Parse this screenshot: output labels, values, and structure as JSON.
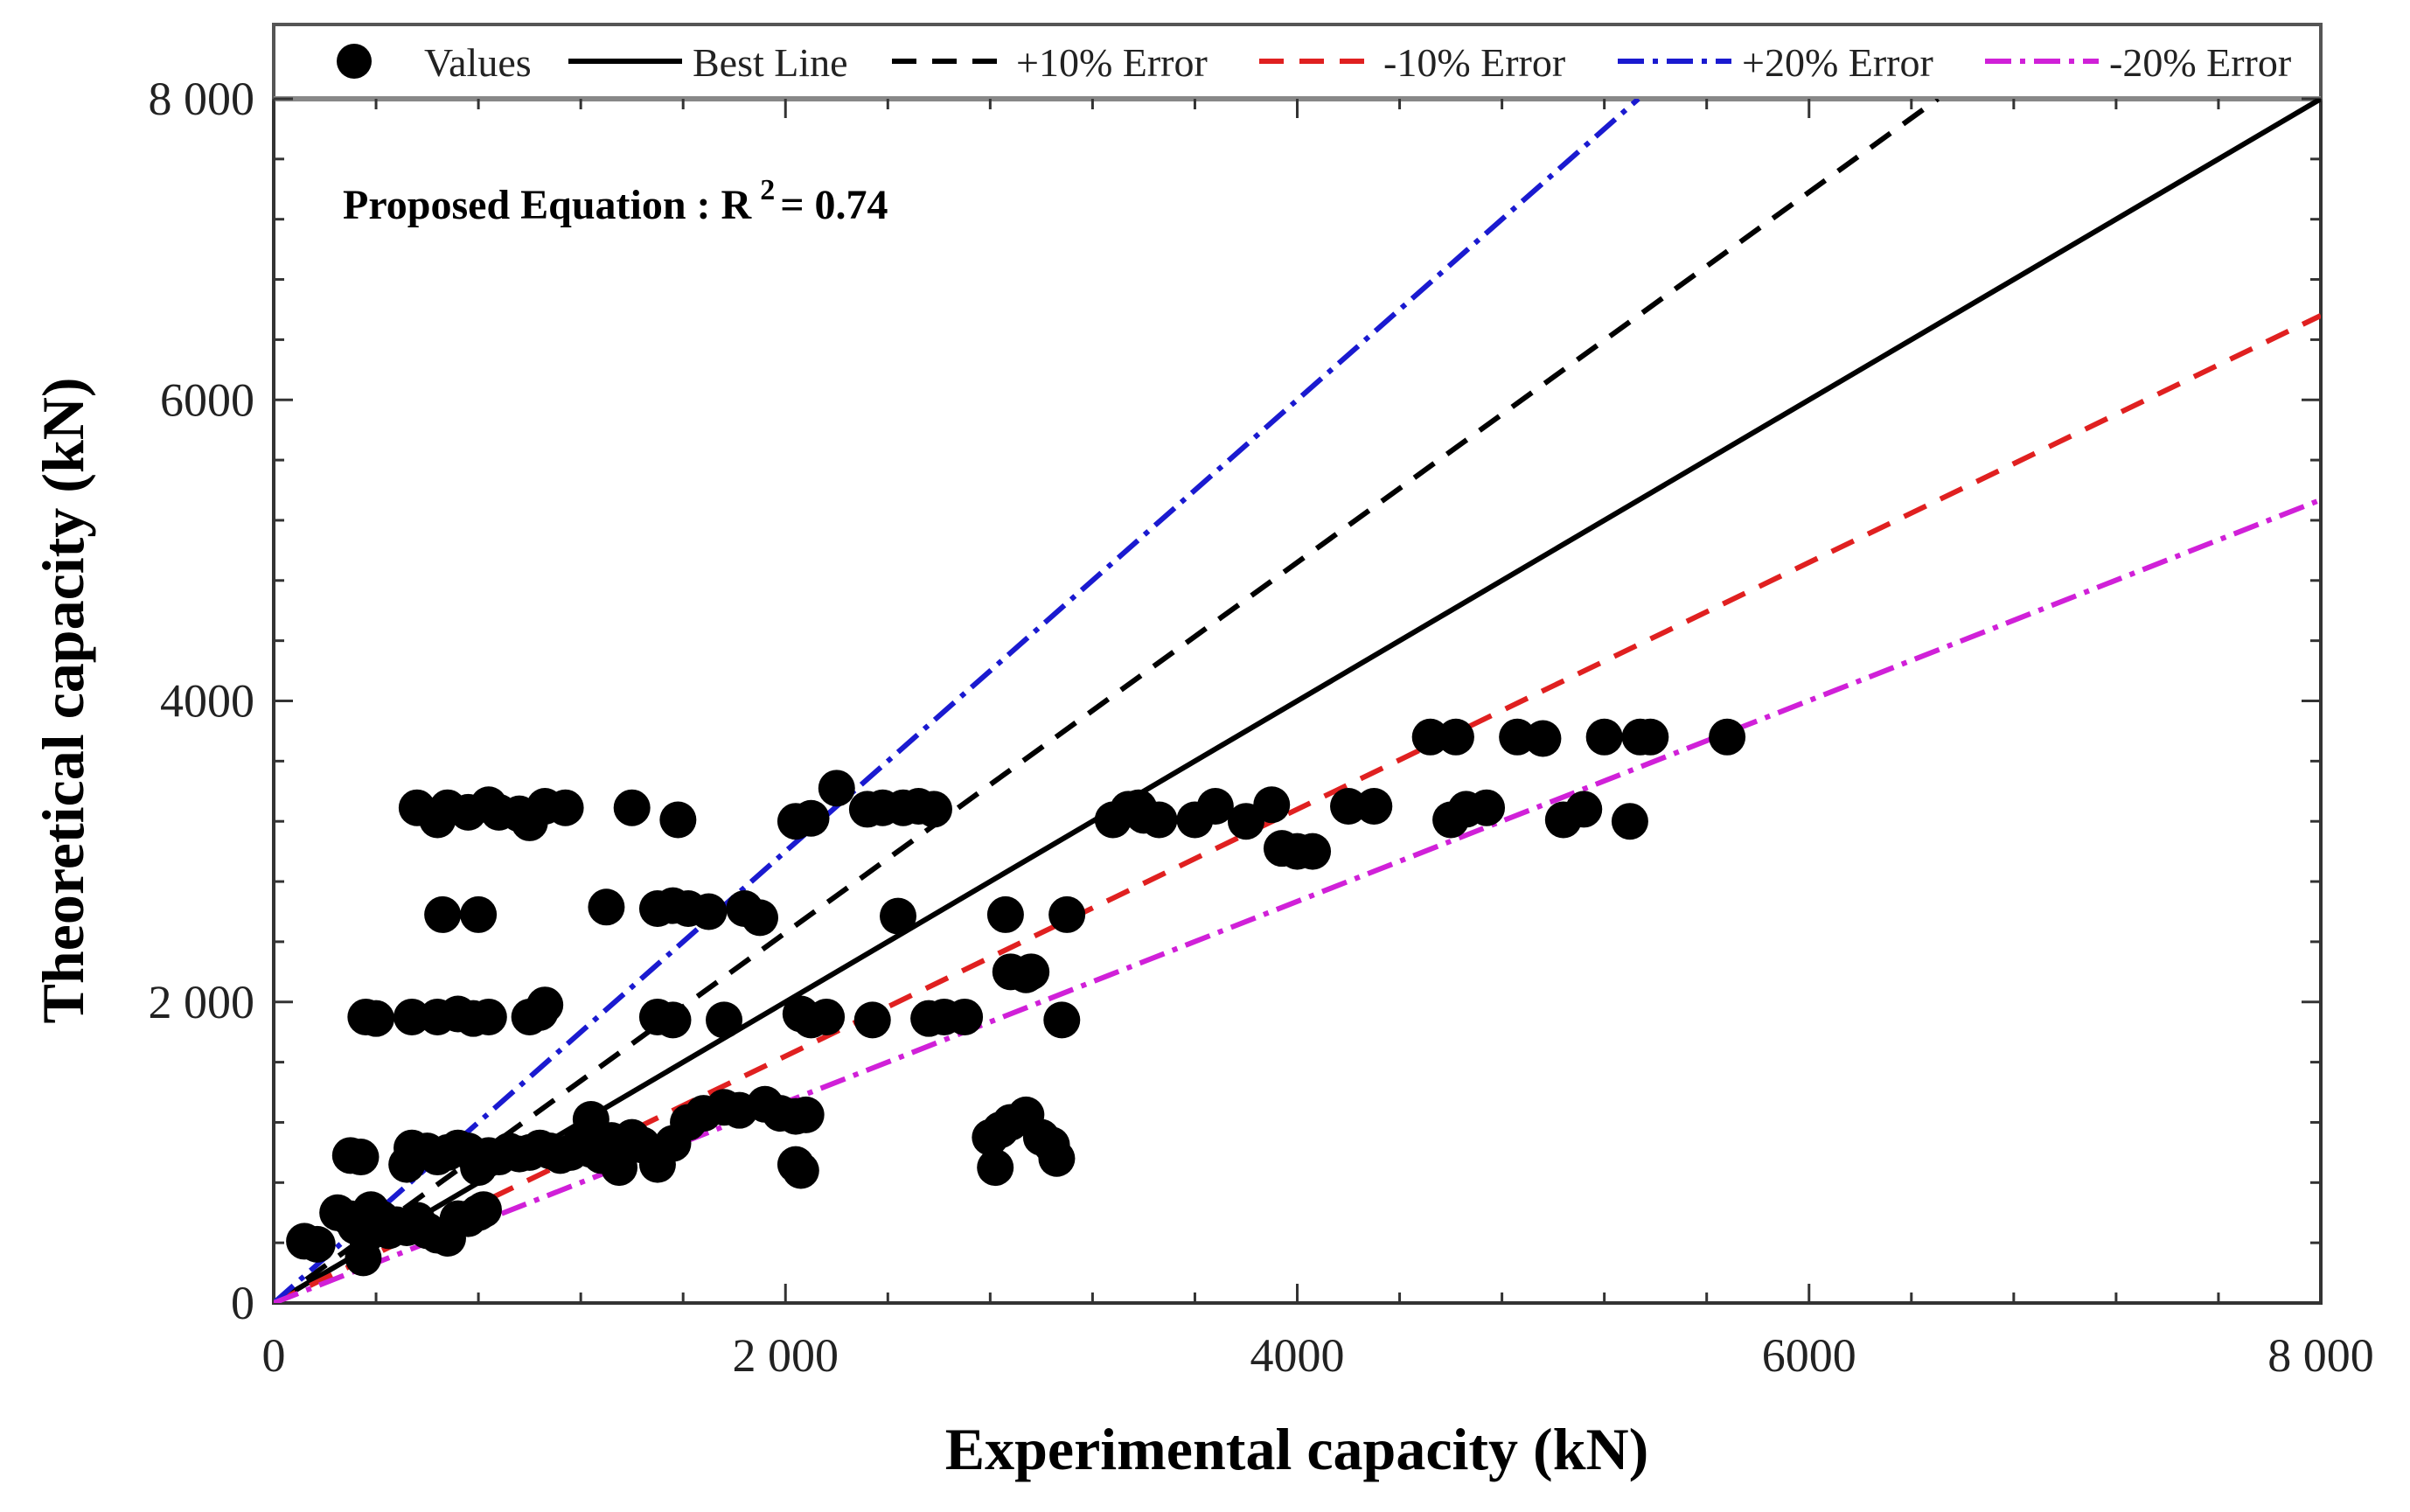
{
  "chart_data": {
    "type": "scatter",
    "title": "",
    "annotation": "Proposed Equation : R",
    "annotation_sup": "2",
    "annotation_value": "= 0.74",
    "xlabel": "Experimental capacity (kN)",
    "ylabel": "Theoretical capacity (kN)",
    "xlim": [
      0,
      8000
    ],
    "ylim": [
      0,
      8000
    ],
    "x_ticks": [
      {
        "value": 0,
        "label": "0"
      },
      {
        "value": 2000,
        "label": "2 000"
      },
      {
        "value": 4000,
        "label": "4000"
      },
      {
        "value": 6000,
        "label": "6000"
      },
      {
        "value": 8000,
        "label": "8 000"
      }
    ],
    "y_ticks": [
      {
        "value": 0,
        "label": "0"
      },
      {
        "value": 2000,
        "label": "2 000"
      },
      {
        "value": 4000,
        "label": "4000"
      },
      {
        "value": 6000,
        "label": "6000"
      },
      {
        "value": 8000,
        "label": "8 000"
      }
    ],
    "legend_position": "top",
    "legend": [
      {
        "name": "Values",
        "kind": "marker",
        "color": "#000000"
      },
      {
        "name": "Best Line",
        "kind": "line",
        "color": "#000000",
        "dash": "solid"
      },
      {
        "name": "+10% Error",
        "kind": "line",
        "color": "#000000",
        "dash": "dash"
      },
      {
        "name": "-10% Error",
        "kind": "line",
        "color": "#e02020",
        "dash": "dash"
      },
      {
        "name": "+20% Error",
        "kind": "line",
        "color": "#1a1ad0",
        "dash": "dashdot"
      },
      {
        "name": "-20% Error",
        "kind": "line",
        "color": "#d020d8",
        "dash": "dashdot"
      }
    ],
    "lines": [
      {
        "name": "Best Line",
        "slope": 1.0,
        "color": "#000000",
        "dash": "solid"
      },
      {
        "name": "+10% Error",
        "slope": 1.23,
        "color": "#000000",
        "dash": "dash"
      },
      {
        "name": "-10% Error",
        "slope": 0.82,
        "color": "#e02020",
        "dash": "dash"
      },
      {
        "name": "+20% Error",
        "slope": 1.5,
        "color": "#1a1ad0",
        "dash": "dashdot"
      },
      {
        "name": "-20% Error",
        "slope": 0.667,
        "color": "#d020d8",
        "dash": "dashdot"
      }
    ],
    "series": [
      {
        "name": "Values",
        "color": "#000000",
        "points": [
          [
            120,
            410
          ],
          [
            170,
            390
          ],
          [
            250,
            600
          ],
          [
            300,
            560
          ],
          [
            320,
            510
          ],
          [
            350,
            300
          ],
          [
            360,
            450
          ],
          [
            380,
            620
          ],
          [
            420,
            560
          ],
          [
            450,
            480
          ],
          [
            480,
            520
          ],
          [
            520,
            500
          ],
          [
            560,
            550
          ],
          [
            600,
            480
          ],
          [
            640,
            450
          ],
          [
            680,
            430
          ],
          [
            720,
            560
          ],
          [
            760,
            560
          ],
          [
            800,
            600
          ],
          [
            820,
            620
          ],
          [
            300,
            980
          ],
          [
            340,
            970
          ],
          [
            520,
            920
          ],
          [
            540,
            1030
          ],
          [
            600,
            1010
          ],
          [
            640,
            970
          ],
          [
            680,
            1000
          ],
          [
            720,
            1030
          ],
          [
            760,
            1010
          ],
          [
            800,
            900
          ],
          [
            840,
            980
          ],
          [
            880,
            970
          ],
          [
            920,
            1010
          ],
          [
            960,
            990
          ],
          [
            1000,
            1000
          ],
          [
            1040,
            1030
          ],
          [
            1080,
            1010
          ],
          [
            1120,
            980
          ],
          [
            1160,
            1000
          ],
          [
            1200,
            1060
          ],
          [
            1240,
            1020
          ],
          [
            1280,
            980
          ],
          [
            1320,
            1080
          ],
          [
            1360,
            1000
          ],
          [
            1400,
            1100
          ],
          [
            1440,
            1050
          ],
          [
            1500,
            920
          ],
          [
            1560,
            1060
          ],
          [
            1620,
            1200
          ],
          [
            1680,
            1260
          ],
          [
            1760,
            1300
          ],
          [
            1820,
            1280
          ],
          [
            1920,
            1320
          ],
          [
            1980,
            1260
          ],
          [
            2040,
            1240
          ],
          [
            2080,
            1250
          ],
          [
            2040,
            920
          ],
          [
            2060,
            880
          ],
          [
            1240,
            1220
          ],
          [
            1350,
            900
          ],
          [
            360,
            1900
          ],
          [
            400,
            1890
          ],
          [
            540,
            1900
          ],
          [
            640,
            1900
          ],
          [
            720,
            1920
          ],
          [
            780,
            1890
          ],
          [
            840,
            1900
          ],
          [
            1000,
            1900
          ],
          [
            1060,
            1980
          ],
          [
            1040,
            1930
          ],
          [
            1500,
            1900
          ],
          [
            1560,
            1880
          ],
          [
            1760,
            1880
          ],
          [
            2060,
            1920
          ],
          [
            2100,
            1880
          ],
          [
            2160,
            1900
          ],
          [
            2340,
            1880
          ],
          [
            2560,
            1890
          ],
          [
            2620,
            1900
          ],
          [
            2700,
            1900
          ],
          [
            3080,
            1880
          ],
          [
            660,
            2580
          ],
          [
            800,
            2580
          ],
          [
            1300,
            2630
          ],
          [
            1500,
            2620
          ],
          [
            1560,
            2640
          ],
          [
            1620,
            2620
          ],
          [
            1700,
            2600
          ],
          [
            1840,
            2620
          ],
          [
            1900,
            2560
          ],
          [
            2440,
            2570
          ],
          [
            2860,
            2580
          ],
          [
            3100,
            2580
          ],
          [
            2880,
            2200
          ],
          [
            2940,
            2180
          ],
          [
            2960,
            2200
          ],
          [
            560,
            3290
          ],
          [
            640,
            3210
          ],
          [
            680,
            3290
          ],
          [
            760,
            3260
          ],
          [
            840,
            3310
          ],
          [
            880,
            3260
          ],
          [
            960,
            3250
          ],
          [
            1000,
            3190
          ],
          [
            1060,
            3300
          ],
          [
            1140,
            3290
          ],
          [
            1400,
            3290
          ],
          [
            1580,
            3210
          ],
          [
            2040,
            3200
          ],
          [
            2100,
            3220
          ],
          [
            2200,
            3420
          ],
          [
            2320,
            3280
          ],
          [
            2380,
            3290
          ],
          [
            2460,
            3290
          ],
          [
            2520,
            3300
          ],
          [
            2580,
            3280
          ],
          [
            2800,
            1100
          ],
          [
            2840,
            1150
          ],
          [
            2880,
            1200
          ],
          [
            2940,
            1250
          ],
          [
            3000,
            1100
          ],
          [
            3040,
            1050
          ],
          [
            2820,
            900
          ],
          [
            3060,
            960
          ],
          [
            3280,
            3210
          ],
          [
            3340,
            3280
          ],
          [
            3380,
            3290
          ],
          [
            3400,
            3240
          ],
          [
            3460,
            3210
          ],
          [
            3600,
            3210
          ],
          [
            3680,
            3300
          ],
          [
            3800,
            3200
          ],
          [
            3900,
            3310
          ],
          [
            3940,
            3020
          ],
          [
            4000,
            3000
          ],
          [
            4060,
            3000
          ],
          [
            4200,
            3300
          ],
          [
            4300,
            3300
          ],
          [
            4520,
            3760
          ],
          [
            4620,
            3760
          ],
          [
            4600,
            3210
          ],
          [
            4660,
            3280
          ],
          [
            4740,
            3290
          ],
          [
            4860,
            3760
          ],
          [
            4960,
            3750
          ],
          [
            5040,
            3210
          ],
          [
            5120,
            3280
          ],
          [
            5200,
            3760
          ],
          [
            5300,
            3200
          ],
          [
            5340,
            3760
          ],
          [
            5380,
            3760
          ],
          [
            5680,
            3760
          ]
        ]
      }
    ]
  }
}
